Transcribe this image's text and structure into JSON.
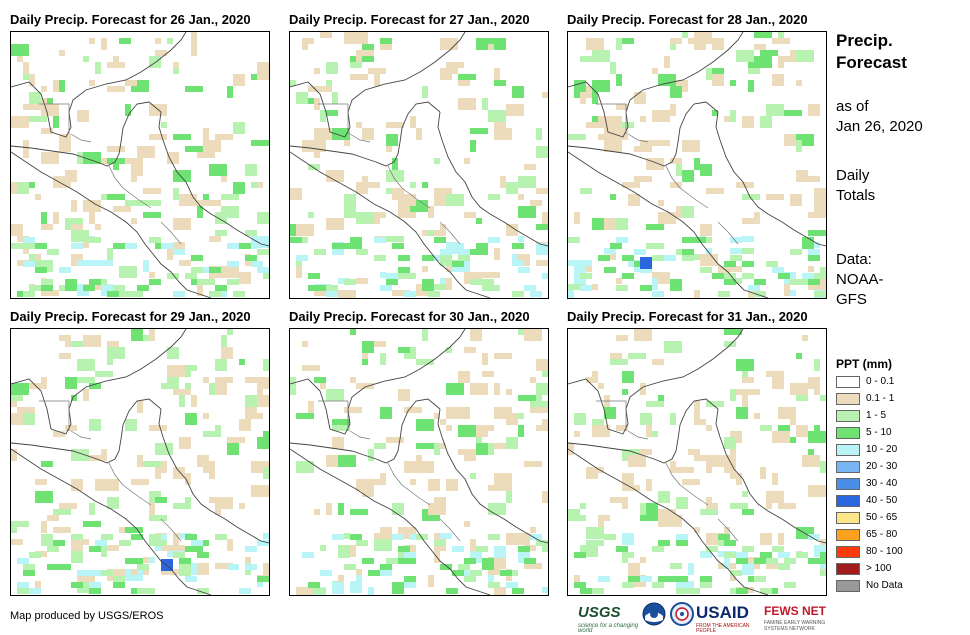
{
  "panels": [
    {
      "title": "Daily Precip. Forecast for 26 Jan., 2020"
    },
    {
      "title": "Daily Precip. Forecast for 27 Jan., 2020"
    },
    {
      "title": "Daily Precip. Forecast for 28 Jan., 2020"
    },
    {
      "title": "Daily Precip. Forecast for 29 Jan., 2020"
    },
    {
      "title": "Daily Precip. Forecast for 30 Jan., 2020"
    },
    {
      "title": "Daily Precip. Forecast for 31 Jan., 2020"
    }
  ],
  "sidebar": {
    "title_line1": "Precip.",
    "title_line2": "Forecast",
    "asof_line1": "as of",
    "asof_line2": "Jan 26, 2020",
    "daily_line1": "Daily",
    "daily_line2": "Totals",
    "data_line1": "Data:",
    "data_line2": "NOAA-",
    "data_line3": "GFS"
  },
  "legend": {
    "title": "PPT (mm)",
    "items": [
      {
        "label": "0 - 0.1",
        "color": "#ffffff"
      },
      {
        "label": "0.1 - 1",
        "color": "#ecdcbc"
      },
      {
        "label": "1 - 5",
        "color": "#b8f2b0"
      },
      {
        "label": "5 - 10",
        "color": "#6ee373"
      },
      {
        "label": "10 - 20",
        "color": "#b9f4f6"
      },
      {
        "label": "20 - 30",
        "color": "#79b6f3"
      },
      {
        "label": "30 - 40",
        "color": "#4a8ee8"
      },
      {
        "label": "40 - 50",
        "color": "#2a66dd"
      },
      {
        "label": "50 - 65",
        "color": "#fde58a"
      },
      {
        "label": "65 - 80",
        "color": "#fba11e"
      },
      {
        "label": "80 - 100",
        "color": "#ff3a0c"
      },
      {
        "label": "> 100",
        "color": "#a31c1c"
      },
      {
        "label": "No Data",
        "color": "#999999"
      }
    ]
  },
  "footer": {
    "credit": "Map produced by USGS/EROS"
  },
  "logos": {
    "usgs": "USGS",
    "usgs_tagline": "science for a changing world",
    "usaid": "USAID",
    "usaid_tagline": "FROM THE AMERICAN PEOPLE",
    "fews": "FEWS NET",
    "fews_tagline": "FAMINE EARLY WARNING SYSTEMS NETWORK"
  }
}
